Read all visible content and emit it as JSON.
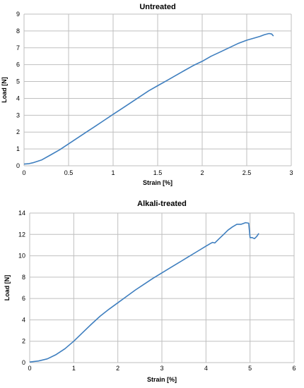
{
  "chart_data": [
    {
      "type": "line",
      "title": "Untreated",
      "xlabel": "Strain [%]",
      "ylabel": "Load [N]",
      "xlim": [
        0,
        3
      ],
      "ylim": [
        0,
        9
      ],
      "xticks": [
        0,
        0.5,
        1,
        1.5,
        2,
        2.5,
        3
      ],
      "yticks": [
        0,
        1,
        2,
        3,
        4,
        5,
        6,
        7,
        8,
        9
      ],
      "grid": true,
      "legend": "none",
      "color": "#3f7fbf",
      "series": [
        {
          "x": [
            0,
            0.05,
            0.1,
            0.2,
            0.3,
            0.4,
            0.5,
            0.6,
            0.7,
            0.8,
            0.9,
            1.0,
            1.1,
            1.2,
            1.3,
            1.4,
            1.5,
            1.6,
            1.7,
            1.8,
            1.9,
            2.0,
            2.1,
            2.2,
            2.3,
            2.4,
            2.5,
            2.6,
            2.65,
            2.7,
            2.75,
            2.78,
            2.8
          ],
          "y": [
            0.1,
            0.12,
            0.18,
            0.35,
            0.65,
            0.95,
            1.3,
            1.65,
            2.0,
            2.35,
            2.7,
            3.05,
            3.4,
            3.75,
            4.1,
            4.45,
            4.75,
            5.05,
            5.35,
            5.65,
            5.95,
            6.2,
            6.5,
            6.75,
            7.0,
            7.25,
            7.45,
            7.6,
            7.68,
            7.78,
            7.85,
            7.82,
            7.7
          ]
        }
      ]
    },
    {
      "type": "line",
      "title": "Alkali-treated",
      "xlabel": "Strain [%]",
      "ylabel": "Load [N]",
      "xlim": [
        0,
        6
      ],
      "ylim": [
        0,
        14
      ],
      "xticks": [
        0,
        1,
        2,
        3,
        4,
        5,
        6
      ],
      "yticks": [
        0,
        2,
        4,
        6,
        8,
        10,
        12,
        14
      ],
      "grid": true,
      "legend": "none",
      "color": "#3f7fbf",
      "series": [
        {
          "x": [
            0,
            0.2,
            0.4,
            0.6,
            0.8,
            1.0,
            1.2,
            1.4,
            1.6,
            1.8,
            2.0,
            2.2,
            2.4,
            2.6,
            2.8,
            3.0,
            3.2,
            3.4,
            3.6,
            3.8,
            4.0,
            4.1,
            4.15,
            4.2,
            4.3,
            4.4,
            4.5,
            4.6,
            4.7,
            4.8,
            4.9,
            4.97,
            5.0,
            5.05,
            5.1,
            5.15,
            5.2
          ],
          "y": [
            0.05,
            0.15,
            0.35,
            0.75,
            1.3,
            2.0,
            2.8,
            3.6,
            4.35,
            5.0,
            5.6,
            6.2,
            6.8,
            7.35,
            7.9,
            8.4,
            8.9,
            9.4,
            9.9,
            10.4,
            10.9,
            11.15,
            11.25,
            11.2,
            11.6,
            12.0,
            12.4,
            12.7,
            12.95,
            12.95,
            13.1,
            13.05,
            11.7,
            11.7,
            11.6,
            11.8,
            12.1
          ]
        }
      ]
    }
  ]
}
